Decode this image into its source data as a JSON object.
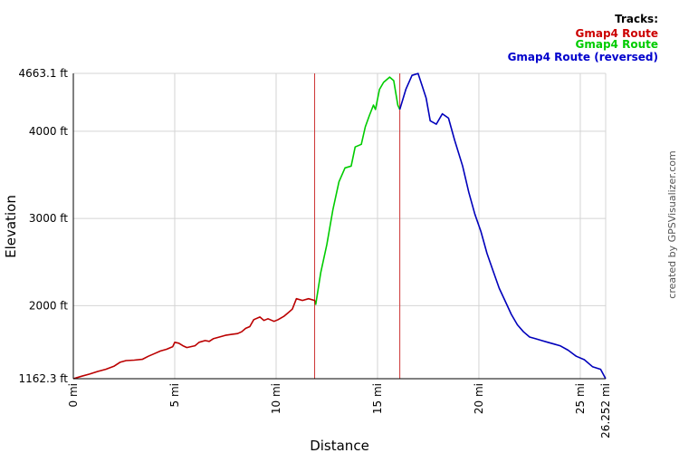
{
  "chart_data": {
    "type": "line",
    "xlabel": "Distance",
    "ylabel": "Elevation",
    "xlim": [
      0,
      26.252
    ],
    "ylim": [
      1162.3,
      4663.1
    ],
    "x_ticks": [
      0,
      5,
      10,
      15,
      20,
      25,
      26.252
    ],
    "x_tick_labels": [
      "0 mi",
      "5 mi",
      "10 mi",
      "15 mi",
      "20 mi",
      "25 mi",
      "26.252 mi"
    ],
    "y_ticks": [
      1162.3,
      2000,
      3000,
      4000,
      4663.1
    ],
    "y_tick_labels": [
      "1162.3 ft",
      "2000 ft",
      "3000 ft",
      "4000 ft",
      "4663.1 ft"
    ],
    "grid": true,
    "legend": {
      "title": "Tracks:",
      "position": "top-right",
      "entries": [
        {
          "label": "Gmap4 Route",
          "color": "#cc0000"
        },
        {
          "label": "Gmap4 Route",
          "color": "#00cc00"
        },
        {
          "label": "Gmap4 Route (reversed)",
          "color": "#0000cc"
        }
      ]
    },
    "dividers_x": [
      11.9,
      16.1
    ],
    "divider_color": "#cc3333",
    "credit": "created by GPSVisualizer.com",
    "series": [
      {
        "name": "Gmap4 Route",
        "color": "#bb0000",
        "points": [
          [
            0,
            1162
          ],
          [
            0.4,
            1190
          ],
          [
            0.8,
            1215
          ],
          [
            1.2,
            1245
          ],
          [
            1.6,
            1270
          ],
          [
            2.0,
            1305
          ],
          [
            2.3,
            1350
          ],
          [
            2.6,
            1370
          ],
          [
            3.0,
            1375
          ],
          [
            3.4,
            1385
          ],
          [
            3.7,
            1420
          ],
          [
            4.0,
            1450
          ],
          [
            4.3,
            1480
          ],
          [
            4.6,
            1500
          ],
          [
            4.9,
            1530
          ],
          [
            5.0,
            1580
          ],
          [
            5.2,
            1570
          ],
          [
            5.4,
            1540
          ],
          [
            5.6,
            1520
          ],
          [
            5.8,
            1530
          ],
          [
            6.0,
            1540
          ],
          [
            6.2,
            1580
          ],
          [
            6.5,
            1600
          ],
          [
            6.7,
            1590
          ],
          [
            6.9,
            1620
          ],
          [
            7.2,
            1640
          ],
          [
            7.5,
            1660
          ],
          [
            7.8,
            1670
          ],
          [
            8.1,
            1680
          ],
          [
            8.3,
            1700
          ],
          [
            8.5,
            1740
          ],
          [
            8.7,
            1760
          ],
          [
            8.9,
            1840
          ],
          [
            9.2,
            1870
          ],
          [
            9.4,
            1830
          ],
          [
            9.6,
            1850
          ],
          [
            9.9,
            1820
          ],
          [
            10.1,
            1840
          ],
          [
            10.4,
            1880
          ],
          [
            10.6,
            1920
          ],
          [
            10.8,
            1960
          ],
          [
            11.0,
            2080
          ],
          [
            11.3,
            2060
          ],
          [
            11.6,
            2080
          ],
          [
            11.9,
            2060
          ],
          [
            11.95,
            2010
          ]
        ]
      },
      {
        "name": "Gmap4 Route",
        "color": "#00cc00",
        "points": [
          [
            11.95,
            2010
          ],
          [
            12.2,
            2380
          ],
          [
            12.5,
            2700
          ],
          [
            12.8,
            3100
          ],
          [
            13.1,
            3420
          ],
          [
            13.4,
            3580
          ],
          [
            13.7,
            3600
          ],
          [
            13.9,
            3820
          ],
          [
            14.2,
            3850
          ],
          [
            14.4,
            4050
          ],
          [
            14.6,
            4180
          ],
          [
            14.8,
            4300
          ],
          [
            14.9,
            4250
          ],
          [
            15.1,
            4480
          ],
          [
            15.3,
            4560
          ],
          [
            15.6,
            4620
          ],
          [
            15.8,
            4580
          ],
          [
            16.0,
            4300
          ],
          [
            16.1,
            4250
          ]
        ]
      },
      {
        "name": "Gmap4 Route (reversed)",
        "color": "#0000bb",
        "points": [
          [
            16.1,
            4250
          ],
          [
            16.4,
            4480
          ],
          [
            16.7,
            4640
          ],
          [
            17.0,
            4662
          ],
          [
            17.2,
            4520
          ],
          [
            17.4,
            4380
          ],
          [
            17.6,
            4120
          ],
          [
            17.9,
            4080
          ],
          [
            18.2,
            4200
          ],
          [
            18.5,
            4150
          ],
          [
            18.8,
            3900
          ],
          [
            19.2,
            3600
          ],
          [
            19.5,
            3300
          ],
          [
            19.8,
            3050
          ],
          [
            20.1,
            2850
          ],
          [
            20.4,
            2600
          ],
          [
            20.7,
            2400
          ],
          [
            21.0,
            2200
          ],
          [
            21.3,
            2050
          ],
          [
            21.6,
            1900
          ],
          [
            21.9,
            1780
          ],
          [
            22.2,
            1700
          ],
          [
            22.5,
            1640
          ],
          [
            22.8,
            1620
          ],
          [
            23.1,
            1600
          ],
          [
            23.4,
            1580
          ],
          [
            23.7,
            1560
          ],
          [
            24.0,
            1540
          ],
          [
            24.4,
            1490
          ],
          [
            24.8,
            1420
          ],
          [
            25.2,
            1380
          ],
          [
            25.6,
            1300
          ],
          [
            26.0,
            1270
          ],
          [
            26.252,
            1162
          ]
        ]
      }
    ]
  }
}
